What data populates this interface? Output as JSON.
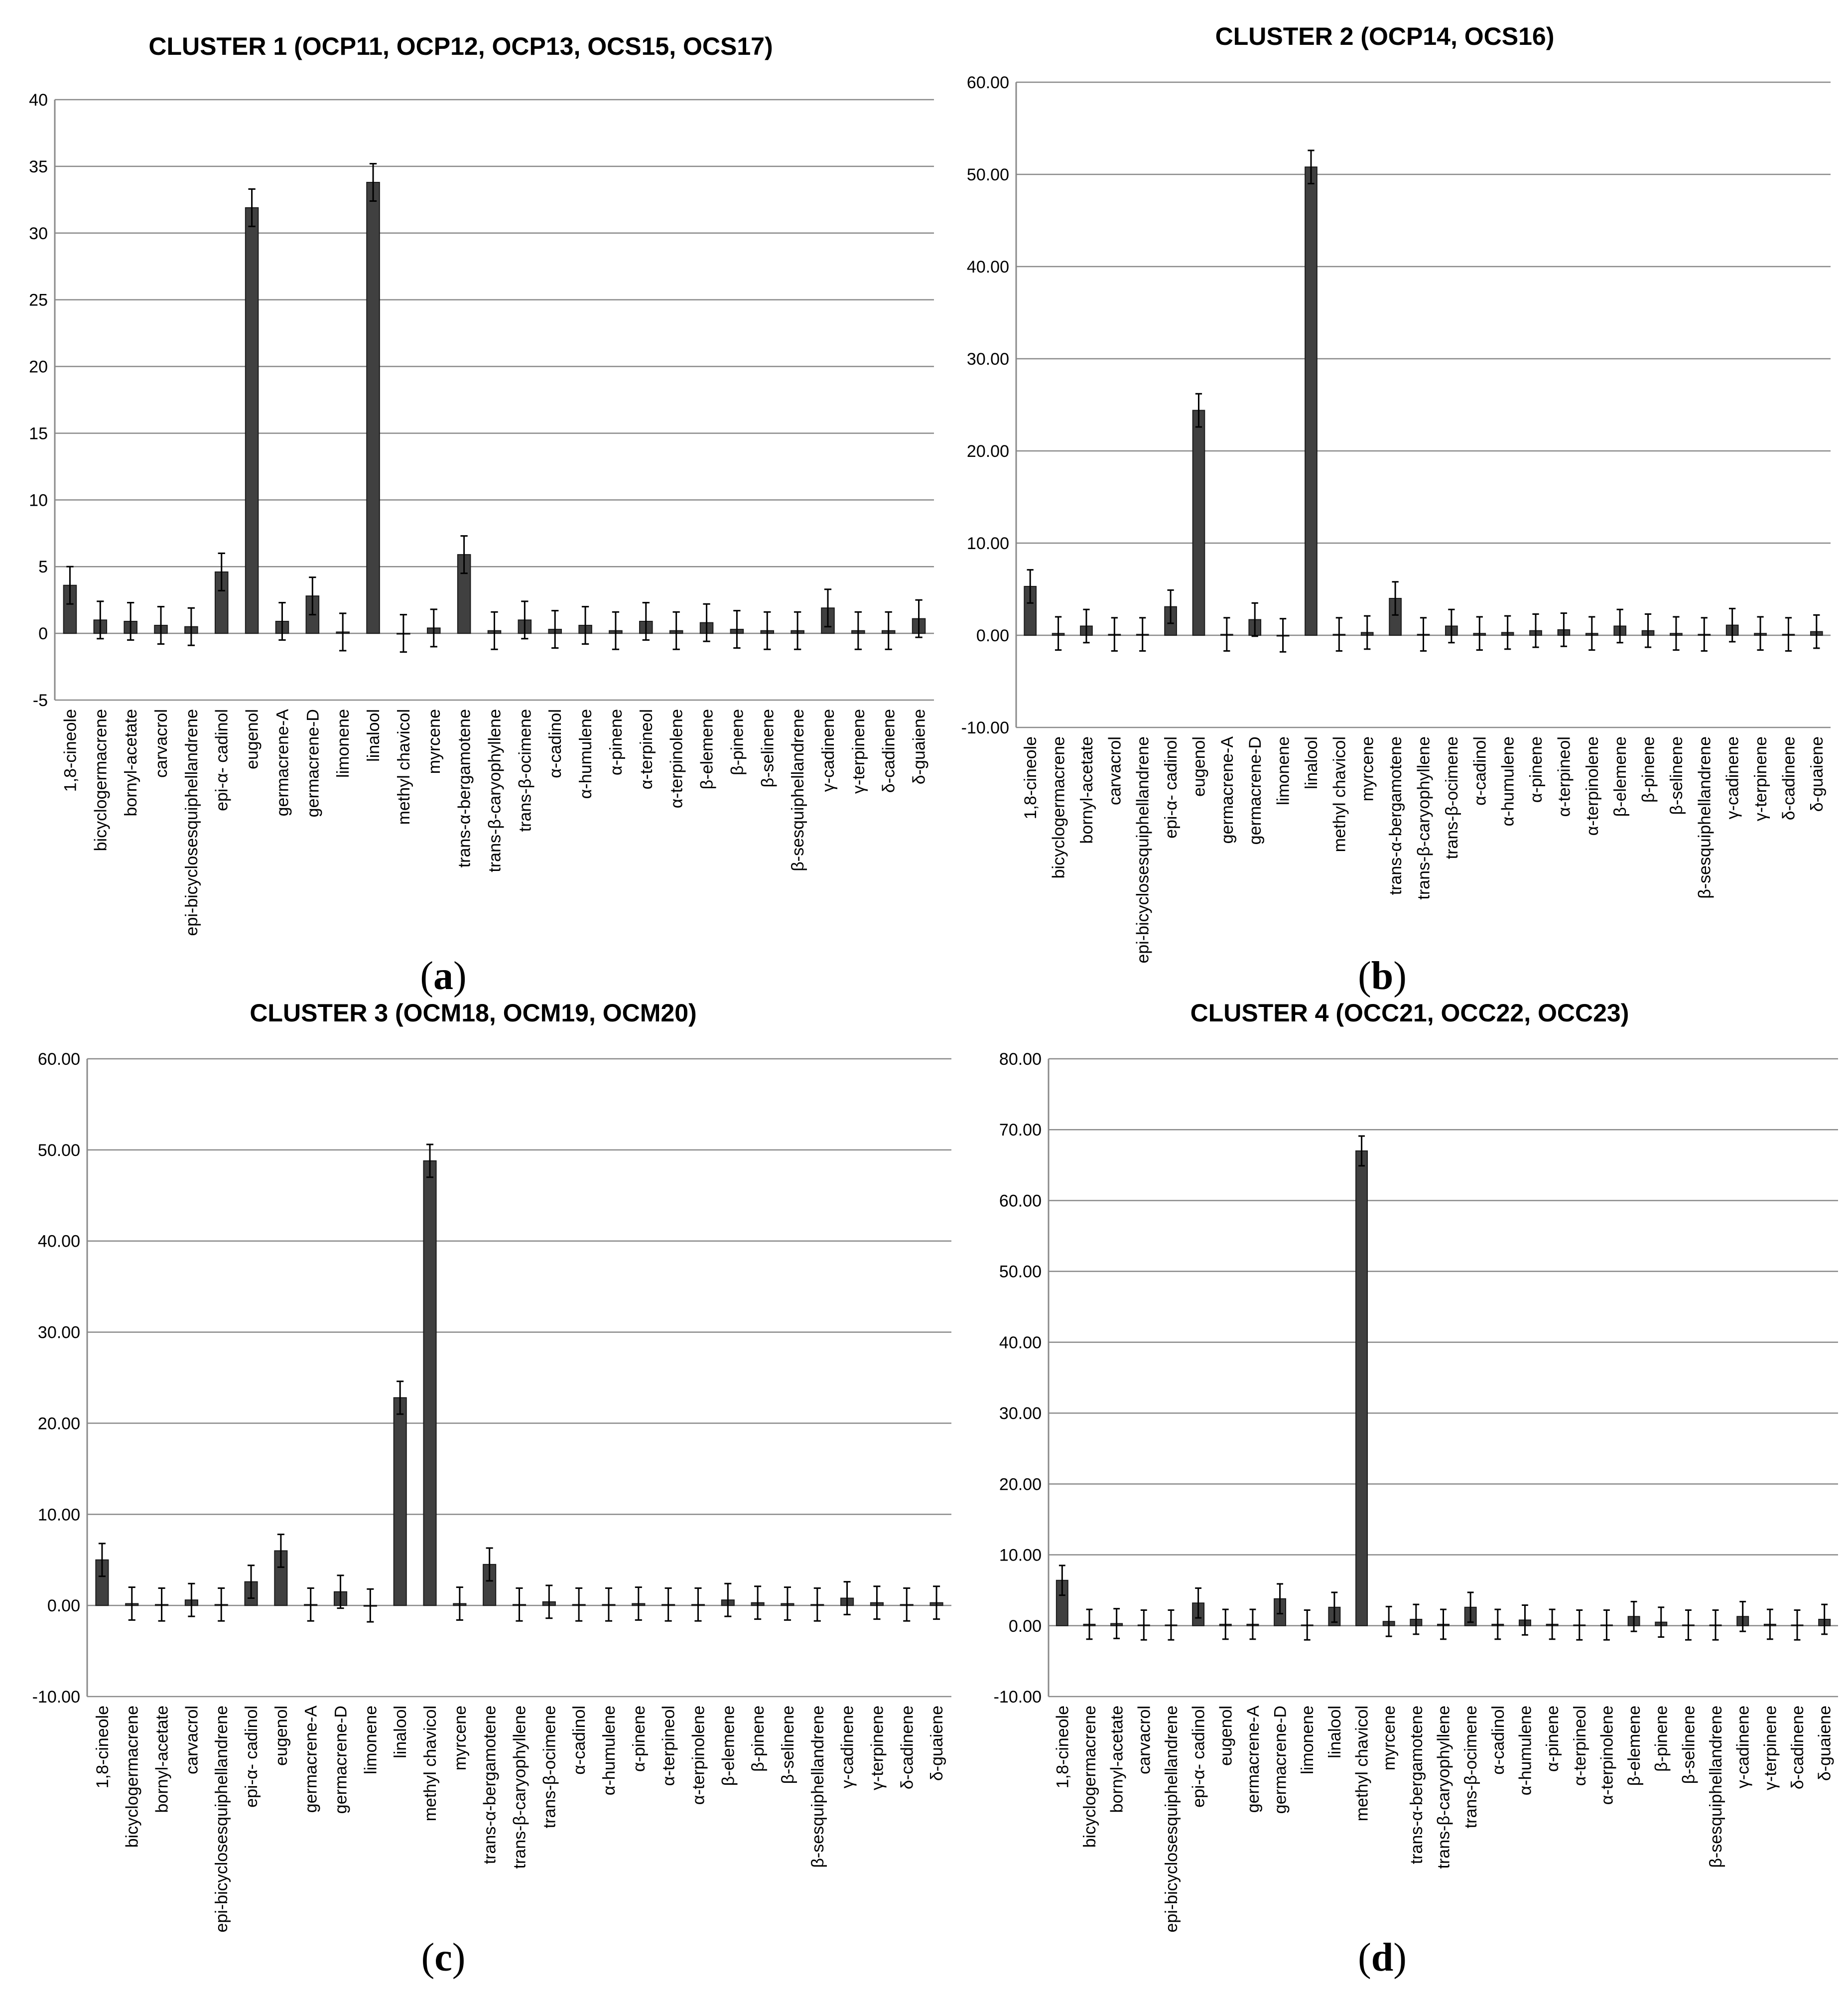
{
  "categories_common": [
    "1,8-cineole",
    "bicyclogermacrene",
    "bornyl-acetate",
    "carvacrol",
    "epi-bicyclosesquiphellandrene",
    "epi-α- cadinol",
    "eugenol",
    "germacrene-A",
    "germacrene-D",
    "limonene",
    "linalool",
    "methyl chavicol",
    "myrcene",
    "trans-α-bergamotene",
    "trans-β-caryophyllene",
    "trans-β-ocimene",
    "α-cadinol",
    "α-humulene",
    "α-pinene",
    "α-terpineol",
    "α-terpinolene",
    "β-elemene",
    "β-pinene",
    "β-selinene",
    "β-sesquiphellandrene",
    "γ-cadinene",
    "γ-terpinene",
    "δ-cadinene",
    "δ-guaiene"
  ],
  "chart_data": [
    {
      "id": "a",
      "type": "bar",
      "title": "CLUSTER 1 (OCP11, OCP12, OCP13, OCS15, OCS17)",
      "caption_letter": "a",
      "ylim": [
        -5,
        40
      ],
      "yticks": [
        -5,
        0,
        5,
        10,
        15,
        20,
        25,
        30,
        35,
        40
      ],
      "ytick_labels": [
        "-5",
        "0",
        "5",
        "10",
        "15",
        "20",
        "25",
        "30",
        "35",
        "40"
      ],
      "grid": true,
      "categories": [
        "1,8-cineole",
        "bicyclogermacrene",
        "bornyl-acetate",
        "carvacrol",
        "epi-bicyclosesquiphellandrene",
        "epi-α- cadinol",
        "eugenol",
        "germacrene-A",
        "germacrene-D",
        "limonene",
        "linalool",
        "methyl chavicol",
        "myrcene",
        "trans-α-bergamotene",
        "trans-β-caryophyllene",
        "trans-β-ocimene",
        "α-cadinol",
        "α-humulene",
        "α-pinene",
        "α-terpineol",
        "α-terpinolene",
        "β-elemene",
        "β-pinene",
        "β-selinene",
        "β-sesquiphellandrene",
        "γ-cadinene",
        "γ-terpinene",
        "δ-cadinene",
        "δ-guaiene"
      ],
      "values": [
        3.6,
        1.0,
        0.9,
        0.6,
        0.5,
        4.6,
        31.9,
        0.9,
        2.8,
        0.1,
        33.8,
        0.0,
        0.4,
        5.9,
        0.2,
        1.0,
        0.3,
        0.6,
        0.2,
        0.9,
        0.2,
        0.8,
        0.3,
        0.2,
        0.2,
        1.9,
        0.2,
        0.2,
        1.1
      ],
      "errors": [
        1.4,
        1.4,
        1.4,
        1.4,
        1.4,
        1.4,
        1.4,
        1.4,
        1.4,
        1.4,
        1.4,
        1.4,
        1.4,
        1.4,
        1.4,
        1.4,
        1.4,
        1.4,
        1.4,
        1.4,
        1.4,
        1.4,
        1.4,
        1.4,
        1.4,
        1.4,
        1.4,
        1.4,
        1.4
      ]
    },
    {
      "id": "b",
      "type": "bar",
      "title": "CLUSTER 2 (OCP14, OCS16)",
      "caption_letter": "b",
      "ylim": [
        -10,
        60
      ],
      "yticks": [
        -10,
        0,
        10,
        20,
        30,
        40,
        50,
        60
      ],
      "ytick_labels": [
        "-10.00",
        "0.00",
        "10.00",
        "20.00",
        "30.00",
        "40.00",
        "50.00",
        "60.00"
      ],
      "grid": true,
      "categories": [
        "1,8-cineole",
        "bicyclogermacrene",
        "bornyl-acetate",
        "carvacrol",
        "epi-bicyclosesquiphellandrene",
        "epi-α- cadinol",
        "eugenol",
        "germacrene-A",
        "germacrene-D",
        "limonene",
        "linalool",
        "methyl chavicol",
        "myrcene",
        "trans-α-bergamotene",
        "trans-β-caryophyllene",
        "trans-β-ocimene",
        "α-cadinol",
        "α-humulene",
        "α-pinene",
        "α-terpineol",
        "α-terpinolene",
        "β-elemene",
        "β-pinene",
        "β-selinene",
        "β-sesquiphellandrene",
        "γ-cadinene",
        "γ-terpinene",
        "δ-cadinene",
        "δ-guaiene"
      ],
      "values": [
        5.3,
        0.2,
        1.0,
        0.1,
        0.1,
        3.1,
        24.4,
        0.1,
        1.7,
        0.0,
        50.8,
        0.1,
        0.3,
        4.0,
        0.1,
        1.0,
        0.2,
        0.3,
        0.5,
        0.6,
        0.2,
        1.0,
        0.5,
        0.2,
        0.1,
        1.1,
        0.2,
        0.1,
        0.4
      ],
      "errors": [
        1.8,
        1.8,
        1.8,
        1.8,
        1.8,
        1.8,
        1.8,
        1.8,
        1.8,
        1.8,
        1.8,
        1.8,
        1.8,
        1.8,
        1.8,
        1.8,
        1.8,
        1.8,
        1.8,
        1.8,
        1.8,
        1.8,
        1.8,
        1.8,
        1.8,
        1.8,
        1.8,
        1.8,
        1.8
      ]
    },
    {
      "id": "c",
      "type": "bar",
      "title": "CLUSTER 3 (OCM18, OCM19, OCM20)",
      "caption_letter": "c",
      "ylim": [
        -10,
        60
      ],
      "yticks": [
        -10,
        0,
        10,
        20,
        30,
        40,
        50,
        60
      ],
      "ytick_labels": [
        "-10.00",
        "0.00",
        "10.00",
        "20.00",
        "30.00",
        "40.00",
        "50.00",
        "60.00"
      ],
      "grid": true,
      "categories": [
        "1,8-cineole",
        "bicyclogermacrene",
        "bornyl-acetate",
        "carvacrol",
        "epi-bicyclosesquiphellandrene",
        "epi-α- cadinol",
        "eugenol",
        "germacrene-A",
        "germacrene-D",
        "limonene",
        "linalool",
        "methyl chavicol",
        "myrcene",
        "trans-α-bergamotene",
        "trans-β-caryophyllene",
        "trans-β-ocimene",
        "α-cadinol",
        "α-humulene",
        "α-pinene",
        "α-terpineol",
        "α-terpinolene",
        "β-elemene",
        "β-pinene",
        "β-selinene",
        "β-sesquiphellandrene",
        "γ-cadinene",
        "γ-terpinene",
        "δ-cadinene",
        "δ-guaiene"
      ],
      "values": [
        5.0,
        0.2,
        0.1,
        0.6,
        0.1,
        2.6,
        6.0,
        0.1,
        1.5,
        0.0,
        22.8,
        48.8,
        0.2,
        4.5,
        0.1,
        0.4,
        0.1,
        0.1,
        0.2,
        0.1,
        0.1,
        0.6,
        0.3,
        0.2,
        0.1,
        0.8,
        0.3,
        0.1,
        0.3
      ],
      "errors": [
        1.8,
        1.8,
        1.8,
        1.8,
        1.8,
        1.8,
        1.8,
        1.8,
        1.8,
        1.8,
        1.8,
        1.8,
        1.8,
        1.8,
        1.8,
        1.8,
        1.8,
        1.8,
        1.8,
        1.8,
        1.8,
        1.8,
        1.8,
        1.8,
        1.8,
        1.8,
        1.8,
        1.8,
        1.8
      ]
    },
    {
      "id": "d",
      "type": "bar",
      "title": "CLUSTER 4 (OCC21, OCC22, OCC23)",
      "caption_letter": "d",
      "ylim": [
        -10,
        80
      ],
      "yticks": [
        -10,
        0,
        10,
        20,
        30,
        40,
        50,
        60,
        70,
        80
      ],
      "ytick_labels": [
        "-10.00",
        "0.00",
        "10.00",
        "20.00",
        "30.00",
        "40.00",
        "50.00",
        "60.00",
        "70.00",
        "80.00"
      ],
      "grid": true,
      "categories": [
        "1,8-cineole",
        "bicyclogermacrene",
        "bornyl-acetate",
        "carvacrol",
        "epi-bicyclosesquiphellandrene",
        "epi-α- cadinol",
        "eugenol",
        "germacrene-A",
        "germacrene-D",
        "limonene",
        "linalool",
        "methyl chavicol",
        "myrcene",
        "trans-α-bergamotene",
        "trans-β-caryophyllene",
        "trans-β-ocimene",
        "α-cadinol",
        "α-humulene",
        "α-pinene",
        "α-terpineol",
        "α-terpinolene",
        "β-elemene",
        "β-pinene",
        "β-selinene",
        "β-sesquiphellandrene",
        "γ-cadinene",
        "γ-terpinene",
        "δ-cadinene",
        "δ-guaiene"
      ],
      "values": [
        6.4,
        0.2,
        0.3,
        0.1,
        0.1,
        3.2,
        0.2,
        0.2,
        3.8,
        0.1,
        2.6,
        67.0,
        0.6,
        0.9,
        0.2,
        2.6,
        0.2,
        0.8,
        0.2,
        0.1,
        0.1,
        1.3,
        0.5,
        0.1,
        0.1,
        1.3,
        0.2,
        0.1,
        0.9
      ],
      "errors": [
        2.1,
        2.1,
        2.1,
        2.1,
        2.1,
        2.1,
        2.1,
        2.1,
        2.1,
        2.1,
        2.1,
        2.1,
        2.1,
        2.1,
        2.1,
        2.1,
        2.1,
        2.1,
        2.1,
        2.1,
        2.1,
        2.1,
        2.1,
        2.1,
        2.1,
        2.1,
        2.1,
        2.1,
        2.1
      ]
    }
  ]
}
